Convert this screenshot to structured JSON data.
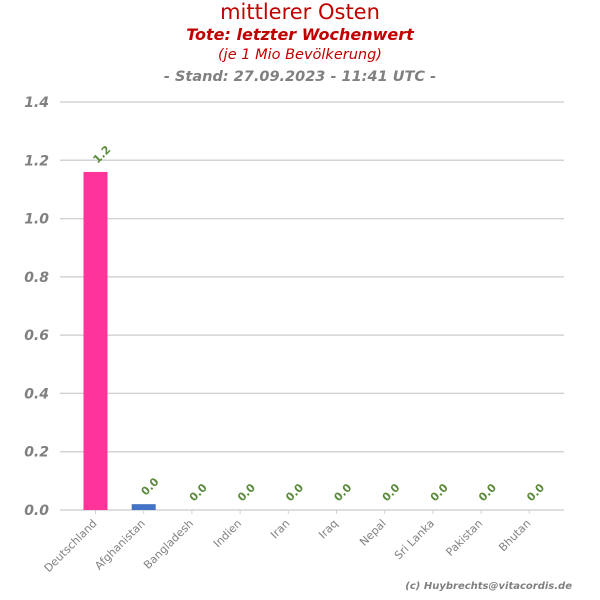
{
  "header": {
    "title": "mittlerer Osten",
    "subtitle": "Tote: letzter Wochenwert",
    "unit": "(je 1 Mio Bevölkerung)",
    "stand": "- Stand: 27.09.2023 - 11:41 UTC -"
  },
  "footer": {
    "credit": "(c) Huybrechts@vitacordis.de"
  },
  "chart_data": {
    "type": "bar",
    "title": "mittlerer Osten",
    "categories": [
      "Deutschland",
      "Afghanistan",
      "Bangladesh",
      "Indien",
      "Iran",
      "Iraq",
      "Nepal",
      "Sri Lanka",
      "Pakistan",
      "Bhutan"
    ],
    "values": [
      1.16,
      0.02,
      0,
      0,
      0,
      0,
      0,
      0,
      0,
      0
    ],
    "data_labels": [
      "1.2",
      "0.0",
      "0.0",
      "0.0",
      "0.0",
      "0.0",
      "0.0",
      "0.0",
      "0.0",
      "0.0"
    ],
    "yticks": [
      "0.0",
      "0.2",
      "0.4",
      "0.6",
      "0.8",
      "1.0",
      "1.2",
      "1.4"
    ],
    "ylim": [
      0,
      1.4
    ],
    "grid": true,
    "bar_colors": [
      "#ff3399",
      "#4472c4",
      "#4472c4",
      "#4472c4",
      "#4472c4",
      "#4472c4",
      "#4472c4",
      "#4472c4",
      "#4472c4",
      "#4472c4"
    ]
  }
}
